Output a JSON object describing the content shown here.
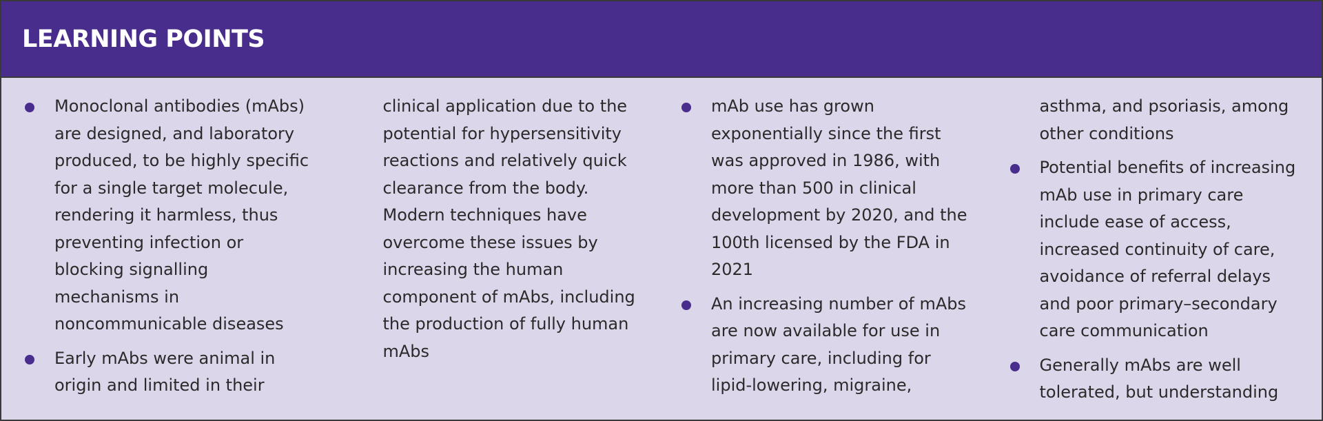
{
  "header": {
    "title": "LEARNING POINTS"
  },
  "points": [
    "Monoclonal antibodies (mAbs) are designed, and laboratory produced, to be highly specific for a single target molecule, rendering it harmless, thus preventing infection or blocking signalling mechanisms in noncommunicable diseases",
    "Early mAbs were animal in origin and limited in their clinical application due to the potential for hypersensitivity reactions and relatively quick clearance from the body. Modern techniques have overcome these issues by increasing the human component of mAbs, including the production of fully human mAbs",
    "mAb use has grown exponentially since the first was approved in 1986, with more than 500 in clinical development by 2020, and the 100th licensed by the FDA in 2021",
    "An increasing number of mAbs are now available for use in primary care, including for lipid-lowering, migraine, asthma, and psoriasis, among other conditions",
    "Potential benefits of increasing mAb use in primary care include ease of access, increased continuity of care, avoidance of referral delays and poor primary–secondary care communication",
    "Generally mAbs are well tolerated, but understanding distinct mAb-associated adverse events can help HCPs monitor for, recognise and promptly manage reactions"
  ]
}
